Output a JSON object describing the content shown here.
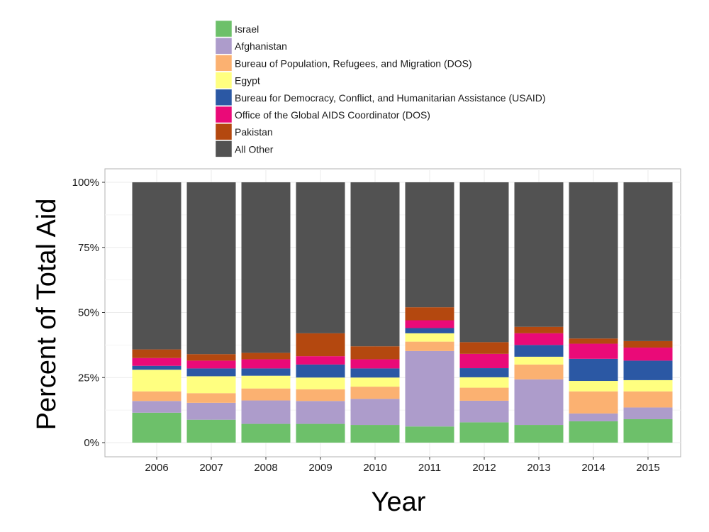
{
  "chart_data": {
    "type": "bar",
    "stacked": true,
    "title": "",
    "xlabel": "Year",
    "ylabel": "Percent of Total Aid",
    "ylim": [
      0,
      100
    ],
    "y_ticks": [
      "0%",
      "25%",
      "50%",
      "75%",
      "100%"
    ],
    "y_tick_values": [
      0,
      25,
      50,
      75,
      100
    ],
    "grid": true,
    "legend_position": "top",
    "categories": [
      "2006",
      "2007",
      "2008",
      "2009",
      "2010",
      "2011",
      "2012",
      "2013",
      "2014",
      "2015"
    ],
    "series": [
      {
        "name": "Israel",
        "color": "#6dc06a",
        "values": [
          11.5,
          8.8,
          7.2,
          7.2,
          6.8,
          6.2,
          7.8,
          6.8,
          8.2,
          9.0
        ]
      },
      {
        "name": "Afghanistan",
        "color": "#ad9ccb",
        "values": [
          4.5,
          6.5,
          9.0,
          8.8,
          10.0,
          29.0,
          8.3,
          17.5,
          3.0,
          4.5
        ]
      },
      {
        "name": "Bureau of Population, Refugees, and Migration (DOS)",
        "color": "#fbb171",
        "values": [
          3.7,
          3.7,
          4.6,
          4.5,
          4.7,
          3.6,
          5.0,
          5.7,
          8.5,
          6.2
        ]
      },
      {
        "name": "Egypt",
        "color": "#ffff80",
        "values": [
          8.3,
          6.5,
          4.9,
          4.5,
          3.5,
          3.2,
          4.0,
          3.0,
          4.0,
          4.3
        ]
      },
      {
        "name": "Bureau for Democracy, Conflict, and Humanitarian Assistance (USAID)",
        "color": "#2b58a4",
        "values": [
          1.5,
          3.0,
          2.8,
          5.0,
          3.5,
          2.0,
          3.5,
          4.5,
          8.5,
          7.5
        ]
      },
      {
        "name": "Office of the Global AIDS Coordinator (DOS)",
        "color": "#ea0a78",
        "values": [
          3.0,
          3.0,
          3.5,
          3.2,
          3.5,
          3.0,
          5.5,
          4.5,
          5.8,
          5.0
        ]
      },
      {
        "name": "Pakistan",
        "color": "#b4480f",
        "values": [
          3.3,
          2.5,
          2.5,
          8.8,
          5.0,
          5.0,
          4.5,
          2.5,
          2.0,
          2.5
        ]
      },
      {
        "name": "All Other",
        "color": "#525252",
        "values": [
          64.2,
          66.0,
          65.5,
          58.0,
          63.0,
          48.0,
          61.4,
          55.5,
          60.0,
          61.0
        ]
      }
    ]
  }
}
